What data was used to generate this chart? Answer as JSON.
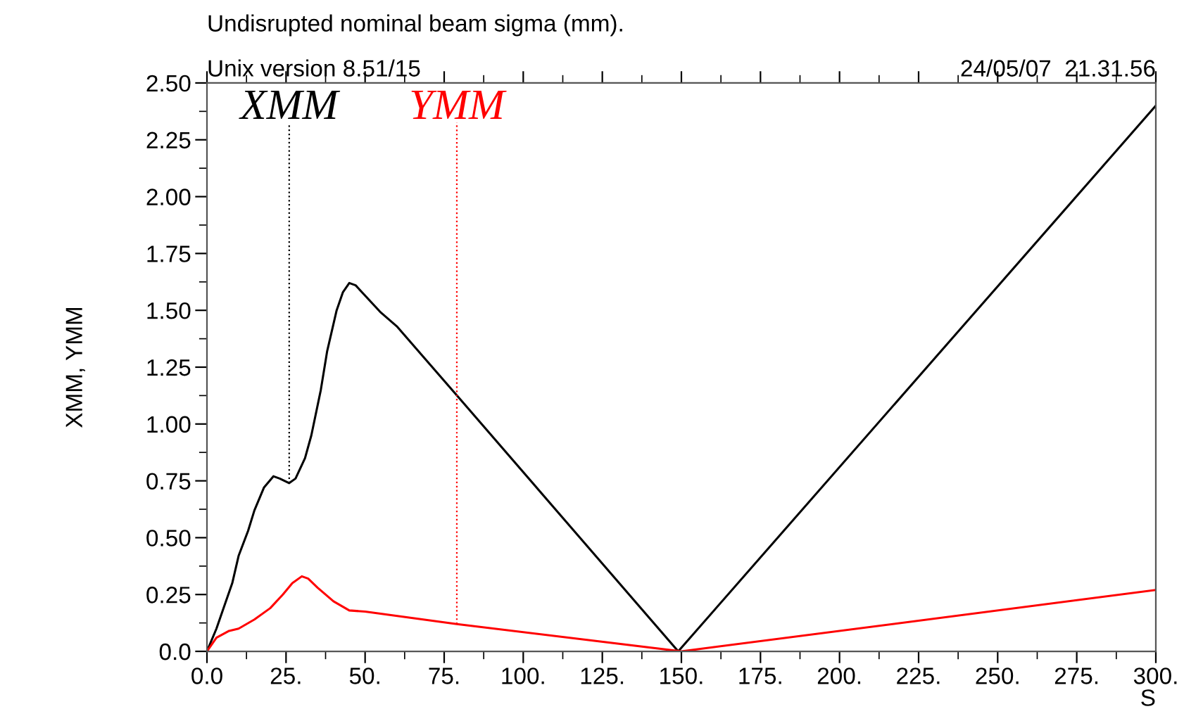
{
  "chart_data": {
    "type": "line",
    "title": "Undisrupted nominal beam sigma (mm).",
    "xlabel": "S",
    "ylabel": "XMM, YMM",
    "annotations": [
      "Unix version 8.51/15",
      "24/05/07  21.31.56",
      {
        "text": "XMM",
        "x": 26,
        "y": 0.74
      },
      {
        "text": "YMM",
        "x": 79,
        "y": 0.12
      }
    ],
    "series": [
      {
        "color": "#000000",
        "x": [
          0,
          3,
          5,
          8,
          10,
          13,
          15,
          18,
          21,
          23,
          26,
          28,
          31,
          33,
          36,
          38,
          41,
          43,
          45,
          47,
          55,
          60,
          80,
          149,
          300
        ],
        "values": [
          0,
          0.1,
          0.18,
          0.3,
          0.42,
          0.53,
          0.62,
          0.72,
          0.77,
          0.76,
          0.74,
          0.76,
          0.85,
          0.95,
          1.15,
          1.32,
          1.5,
          1.58,
          1.62,
          1.61,
          1.49,
          1.43,
          1.11,
          0,
          2.4
        ]
      },
      {
        "color": "#ff0000",
        "x": [
          0,
          3,
          7,
          10,
          15,
          20,
          24,
          27,
          30,
          32,
          35,
          40,
          45,
          50,
          79,
          150,
          300
        ],
        "values": [
          0,
          0.06,
          0.09,
          0.1,
          0.14,
          0.19,
          0.25,
          0.3,
          0.33,
          0.32,
          0.28,
          0.22,
          0.18,
          0.175,
          0.12,
          0,
          0.27
        ]
      }
    ],
    "xlim": [
      0,
      300
    ],
    "ylim": [
      0,
      2.5
    ],
    "xticks": [
      {
        "value": 0,
        "label": "0.0"
      },
      {
        "value": 25,
        "label": "25."
      },
      {
        "value": 50,
        "label": "50."
      },
      {
        "value": 75,
        "label": "75."
      },
      {
        "value": 100,
        "label": "100."
      },
      {
        "value": 125,
        "label": "125."
      },
      {
        "value": 150,
        "label": "150."
      },
      {
        "value": 175,
        "label": "175."
      },
      {
        "value": 200,
        "label": "200."
      },
      {
        "value": 225,
        "label": "225."
      },
      {
        "value": 250,
        "label": "250."
      },
      {
        "value": 275,
        "label": "275."
      },
      {
        "value": 300,
        "label": "300."
      }
    ],
    "yticks": [
      {
        "value": 0,
        "label": "0.0"
      },
      {
        "value": 0.25,
        "label": "0.25"
      },
      {
        "value": 0.5,
        "label": "0.50"
      },
      {
        "value": 0.75,
        "label": "0.75"
      },
      {
        "value": 1,
        "label": "1.00"
      },
      {
        "value": 1.25,
        "label": "1.25"
      },
      {
        "value": 1.5,
        "label": "1.50"
      },
      {
        "value": 1.75,
        "label": "1.75"
      },
      {
        "value": 2,
        "label": "2.00"
      },
      {
        "value": 2.25,
        "label": "2.25"
      },
      {
        "value": 2.5,
        "label": "2.50"
      }
    ],
    "grid": false,
    "legend": false,
    "line_style": "solid",
    "marker": "none"
  }
}
